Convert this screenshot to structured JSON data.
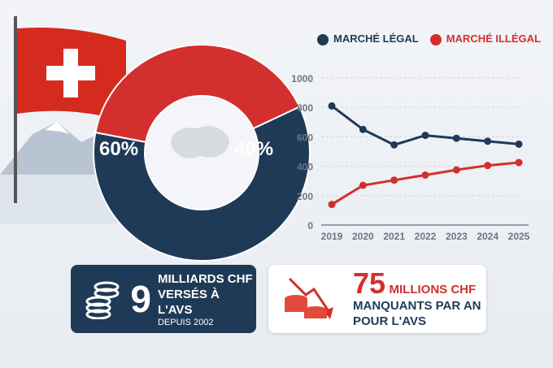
{
  "chart_data": [
    {
      "type": "pie",
      "donut": true,
      "values": [
        60,
        40
      ],
      "labels": [
        "60%",
        "40%"
      ],
      "colors": [
        "#1f3a57",
        "#d32f2f"
      ]
    },
    {
      "type": "line",
      "x": [
        2019,
        2020,
        2021,
        2022,
        2023,
        2024,
        2025
      ],
      "series": [
        {
          "name": "MARCHÉ LÉGAL",
          "color": "#1f3a57",
          "values": [
            810,
            650,
            545,
            610,
            590,
            570,
            550
          ]
        },
        {
          "name": "MARCHÉ ILLÉGAL",
          "color": "#d32f2f",
          "values": [
            140,
            270,
            305,
            340,
            375,
            405,
            425
          ]
        }
      ],
      "ylim": [
        0,
        1000
      ],
      "yticks": [
        0,
        200,
        400,
        600,
        800,
        1000
      ],
      "grid": true,
      "legend": "top"
    }
  ],
  "cards": {
    "left": {
      "number": "9",
      "line1": "MILLIARDS CHF",
      "line2": "VERSÉS À L'AVS",
      "line3": "DEPUIS 2002",
      "icon": "coins-icon"
    },
    "right": {
      "number": "75",
      "unit": "MILLIONS CHF",
      "line1": "MANQUANTS PAR AN",
      "line2": "POUR L'AVS",
      "icon": "coins-down-arrow-icon"
    }
  }
}
